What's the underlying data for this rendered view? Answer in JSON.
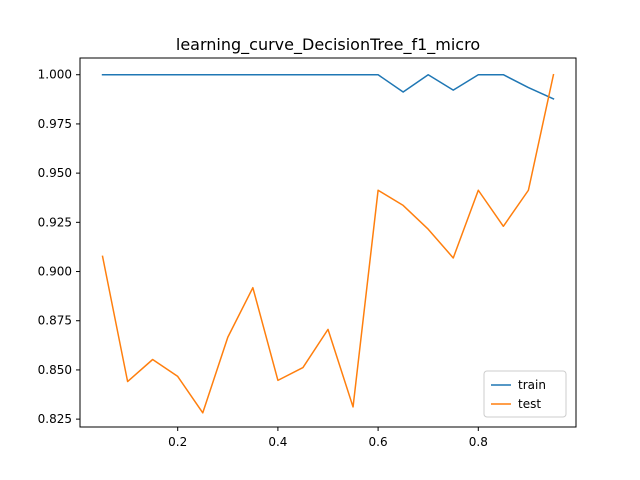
{
  "chart_data": {
    "type": "line",
    "title": "learning_curve_DecisionTree_f1_micro",
    "xlabel": "",
    "ylabel": "",
    "xlim": [
      0.005,
      0.995
    ],
    "ylim": [
      0.821,
      1.0085
    ],
    "xticks": [
      0.2,
      0.4,
      0.6,
      0.8
    ],
    "xtick_labels": [
      "0.2",
      "0.4",
      "0.6",
      "0.8"
    ],
    "yticks": [
      0.825,
      0.85,
      0.875,
      0.9,
      0.925,
      0.95,
      0.975,
      1.0
    ],
    "ytick_labels": [
      "0.825",
      "0.850",
      "0.875",
      "0.900",
      "0.925",
      "0.950",
      "0.975",
      "1.000"
    ],
    "grid": false,
    "legend_position": "lower-right",
    "x": [
      0.05,
      0.1,
      0.15,
      0.2,
      0.25,
      0.3,
      0.35,
      0.4,
      0.45,
      0.5,
      0.55,
      0.6,
      0.65,
      0.7,
      0.75,
      0.8,
      0.85,
      0.9,
      0.95
    ],
    "series": [
      {
        "name": "train",
        "color": "#1f77b4",
        "values": [
          1.0,
          1.0,
          1.0,
          1.0,
          1.0,
          1.0,
          1.0,
          1.0,
          1.0,
          1.0,
          1.0,
          1.0,
          0.9912,
          1.0,
          0.9922,
          1.0,
          1.0,
          0.9935,
          0.9877
        ]
      },
      {
        "name": "test",
        "color": "#ff7f0e",
        "values": [
          0.9077,
          0.8441,
          0.8553,
          0.8467,
          0.8282,
          0.8666,
          0.8918,
          0.8447,
          0.8512,
          0.8706,
          0.8312,
          0.9413,
          0.9336,
          0.9215,
          0.9069,
          0.9413,
          0.923,
          0.9413,
          1.0
        ]
      }
    ]
  }
}
